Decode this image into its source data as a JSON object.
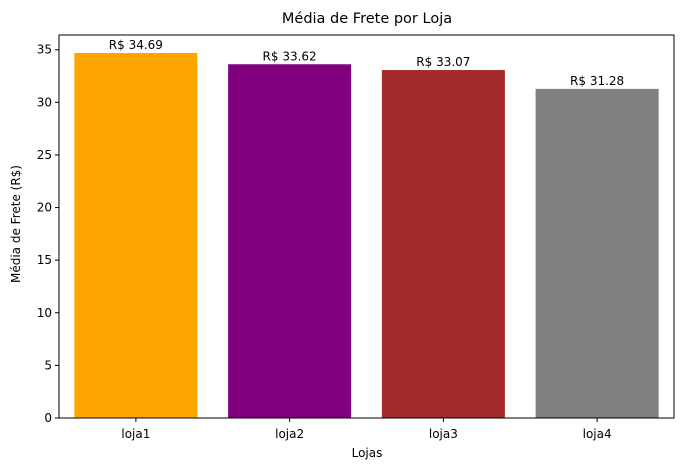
{
  "chart_data": {
    "type": "bar",
    "title": "Média de Frete por Loja",
    "xlabel": "Lojas",
    "ylabel": "Média de Frete (R$)",
    "categories": [
      "loja1",
      "loja2",
      "loja3",
      "loja4"
    ],
    "values": [
      34.69,
      33.62,
      33.07,
      31.28
    ],
    "data_labels": [
      "R$ 34.69",
      "R$ 33.62",
      "R$ 33.07",
      "R$ 31.28"
    ],
    "colors": [
      "#ffa500",
      "#800080",
      "#a52a2a",
      "#808080"
    ],
    "ylim": [
      0,
      36.4
    ],
    "yticks": [
      0,
      5,
      10,
      15,
      20,
      25,
      30,
      35
    ],
    "grid": false,
    "legend": false
  }
}
